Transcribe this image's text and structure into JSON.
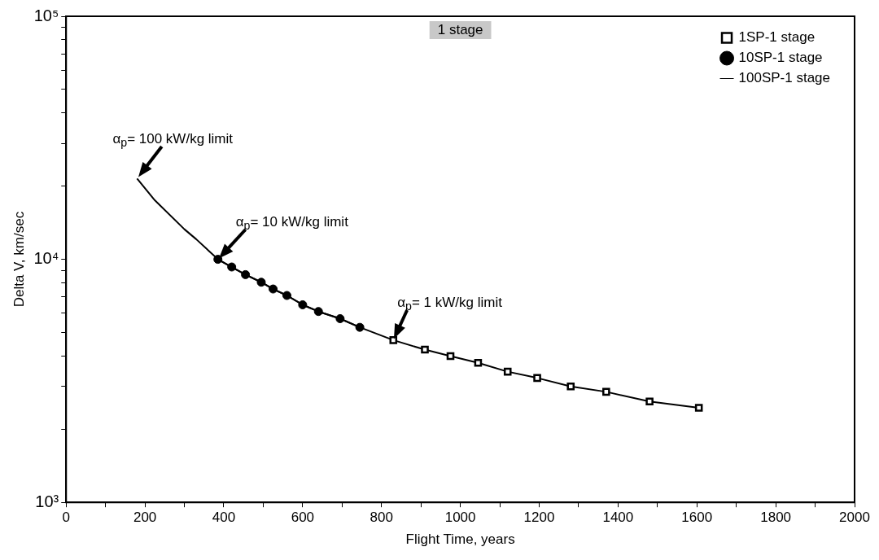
{
  "chart_data": {
    "type": "line",
    "xlabel": "Flight Time, years",
    "ylabel": "Delta V, km/sec",
    "xlim": [
      0,
      2000
    ],
    "xticks": [
      0,
      {
        "value": 100,
        "label": null
      },
      200,
      {
        "value": 300,
        "label": null
      },
      400,
      {
        "value": 500,
        "label": null
      },
      600,
      {
        "value": 700,
        "label": null
      },
      800,
      {
        "value": 900,
        "label": null
      },
      1000,
      {
        "value": 1100,
        "label": null
      },
      1200,
      {
        "value": 1300,
        "label": null
      },
      1400,
      {
        "value": 1500,
        "label": null
      },
      1600,
      {
        "value": 1700,
        "label": null
      },
      1800,
      {
        "value": 1900,
        "label": null
      },
      2000
    ],
    "log": "y",
    "ylim": [
      1000,
      100000
    ],
    "yticks": [
      {
        "value": 1000,
        "label": "10³"
      },
      {
        "value": 2000,
        "label": null
      },
      {
        "value": 3000,
        "label": null
      },
      {
        "value": 4000,
        "label": null
      },
      {
        "value": 5000,
        "label": null
      },
      {
        "value": 6000,
        "label": null
      },
      {
        "value": 7000,
        "label": null
      },
      {
        "value": 8000,
        "label": null
      },
      {
        "value": 9000,
        "label": null
      },
      {
        "value": 10000,
        "label": "10⁴"
      },
      {
        "value": 20000,
        "label": null
      },
      {
        "value": 30000,
        "label": null
      },
      {
        "value": 40000,
        "label": null
      },
      {
        "value": 50000,
        "label": null
      },
      {
        "value": 60000,
        "label": null
      },
      {
        "value": 70000,
        "label": null
      },
      {
        "value": 80000,
        "label": null
      },
      {
        "value": 90000,
        "label": null
      },
      {
        "value": 100000,
        "label": "10⁵"
      }
    ],
    "grid": false,
    "legend": "top right",
    "series": [
      {
        "name": "1SP-1 stage",
        "color": "#000000",
        "marker": "square",
        "x": [
          830,
          910,
          975,
          1045,
          1120,
          1195,
          1280,
          1370,
          1480,
          1605
        ],
        "values": [
          4650,
          4250,
          4000,
          3750,
          3450,
          3250,
          3000,
          2850,
          2600,
          2450
        ]
      },
      {
        "name": "10SP-1 stage",
        "color": "#000000",
        "marker": "circle",
        "x": [
          385,
          420,
          455,
          495,
          525,
          560,
          600,
          640,
          695,
          745
        ],
        "values": [
          10000,
          9300,
          8650,
          8050,
          7550,
          7100,
          6500,
          6100,
          5700,
          5250
        ]
      },
      {
        "name": "100SP-1 stage",
        "color": "#000000",
        "marker": "none",
        "x": [
          180,
          225,
          300,
          330,
          385,
          420,
          455,
          495,
          525,
          560,
          600,
          640,
          695,
          745,
          830
        ],
        "values": [
          21500,
          17500,
          13300,
          12100,
          10000,
          9300,
          8650,
          8050,
          7550,
          7100,
          6500,
          6100,
          5700,
          5250,
          4650
        ]
      }
    ],
    "annotations": [
      {
        "text": "α$_{p}$= 100 kW/kg limit",
        "x": 180,
        "y": 21500
      },
      {
        "text": "α$_{p}$= 10 kW/kg limit",
        "x": 385,
        "y": 10000
      },
      {
        "text": "α$_{p}$= 1 kW/kg limit",
        "x": 830,
        "y": 4650
      },
      "1 stage"
    ]
  }
}
